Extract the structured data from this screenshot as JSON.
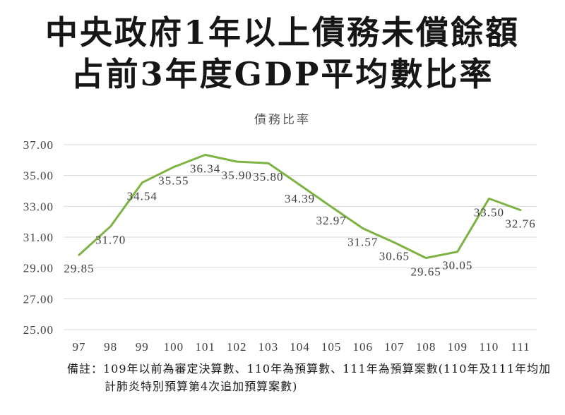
{
  "heading": {
    "line1": "中央政府1年以上債務未償餘額",
    "line2": "占前3年度GDP平均數比率"
  },
  "chart_data": {
    "type": "line",
    "title": "債務比率",
    "categories": [
      "97",
      "98",
      "99",
      "100",
      "101",
      "102",
      "103",
      "104",
      "105",
      "106",
      "107",
      "108",
      "109",
      "110",
      "111"
    ],
    "values": [
      29.85,
      31.7,
      34.54,
      35.55,
      36.34,
      35.9,
      35.8,
      34.39,
      32.97,
      31.57,
      30.65,
      29.65,
      30.05,
      33.5,
      32.76
    ],
    "ylim": [
      25,
      37
    ],
    "yticks": [
      "25.00",
      "27.00",
      "29.00",
      "31.00",
      "33.00",
      "35.00",
      "37.00"
    ],
    "data_labels": true,
    "grid": true,
    "line_color": "#7cb342",
    "grid_color": "#d9d9d9"
  },
  "footnote": {
    "line1": "備註：109年以前為審定決算數、110年為預算數、111年為預算案數(110年及111年均加",
    "line2": "計肺炎特別預算第4次追加預算案數)"
  }
}
